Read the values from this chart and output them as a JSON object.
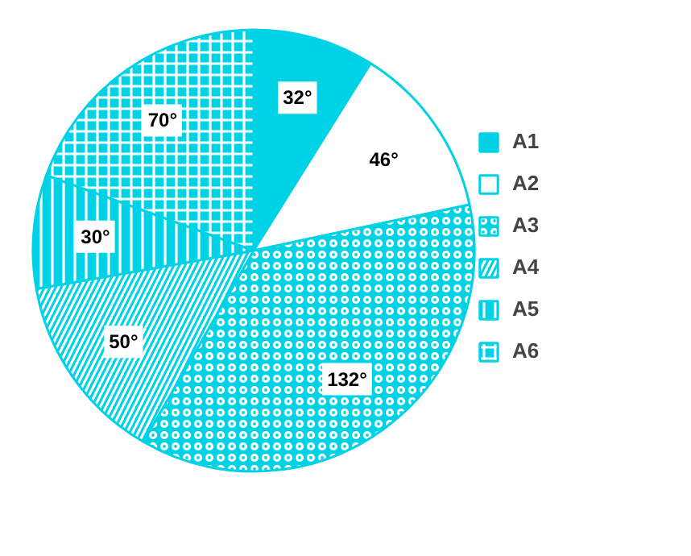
{
  "chart_data": {
    "type": "pie",
    "categories": [
      "A1",
      "A2",
      "A3",
      "A4",
      "A5",
      "A6"
    ],
    "values": [
      32,
      46,
      132,
      50,
      30,
      70
    ],
    "colors": [
      "#00d2e6",
      "#ffffff",
      "#00d2e6",
      "#00d2e6",
      "#00d2e6",
      "#00d2e6"
    ],
    "value_labels": [
      "32°",
      "46°",
      "132°",
      "50°",
      "30°",
      "70°"
    ],
    "legend": "right"
  }
}
